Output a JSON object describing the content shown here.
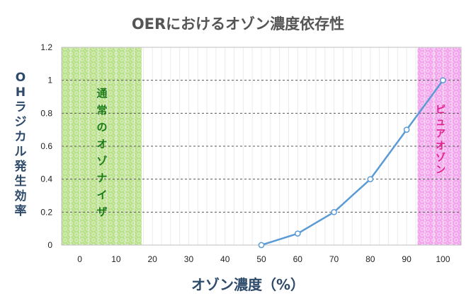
{
  "chart_data": {
    "type": "line",
    "title": "OERにおけるオゾン濃度依存性",
    "xlabel": "オゾン濃度（%）",
    "ylabel": "OHラジカル発生効率",
    "x_ticks": [
      0,
      10,
      20,
      30,
      40,
      50,
      60,
      70,
      80,
      90,
      100
    ],
    "y_ticks": [
      "0",
      "0.2",
      "0.4",
      "0.6",
      "0.8",
      "1",
      "1.2"
    ],
    "xlim": [
      -5,
      105
    ],
    "ylim": [
      0,
      1.2
    ],
    "series": [
      {
        "color": "#5b9bd5",
        "x": [
          50,
          60,
          70,
          80,
          90,
          100
        ],
        "y": [
          0,
          0.07,
          0.2,
          0.4,
          0.7,
          1.0
        ]
      }
    ],
    "regions": [
      {
        "label": "通常のオゾナイザ",
        "x_range": [
          -5,
          17
        ],
        "color": "#a6d96a"
      },
      {
        "label": "ピュアオゾン",
        "x_range": [
          93,
          105
        ],
        "color": "#f08ae8"
      }
    ],
    "grid": {
      "horizontal": true,
      "horizontal_style": "dashed",
      "vertical_minor": true
    }
  }
}
